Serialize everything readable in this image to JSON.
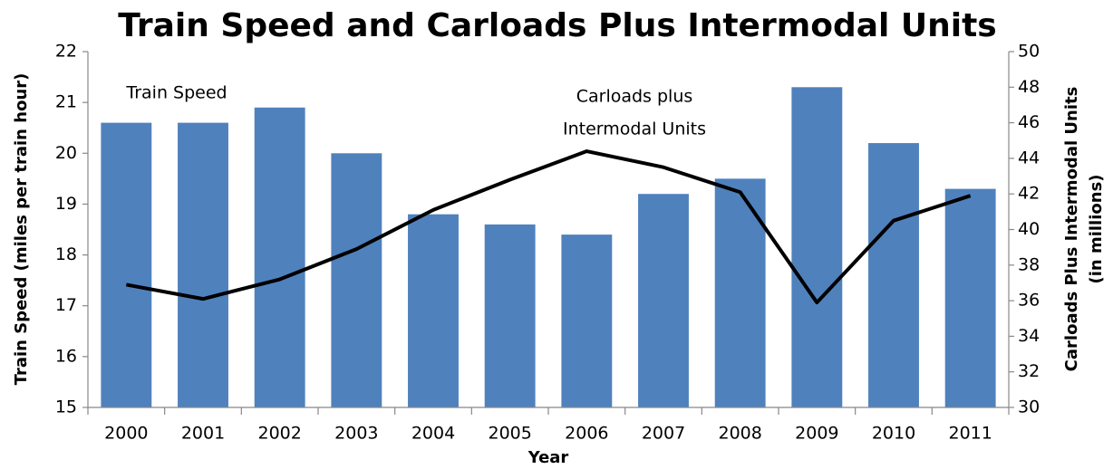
{
  "chart_data": {
    "type": "bar-line",
    "title": "Train Speed and Carloads Plus Intermodal Units",
    "x_label": "Year",
    "y_label": "Train Speed (miles per train hour)",
    "y2_label": [
      "Carloads Plus Intermodal Units",
      "(in millions)"
    ],
    "annotations": [
      "Train Speed",
      "Carloads plus",
      "Intermodal Units"
    ],
    "categories": [
      "2000",
      "2001",
      "2002",
      "2003",
      "2004",
      "2005",
      "2006",
      "2007",
      "2008",
      "2009",
      "2010",
      "2011"
    ],
    "series": [
      {
        "type": "bar",
        "color": "#4f81bd",
        "values": [
          20.6,
          20.6,
          20.9,
          20.0,
          18.8,
          18.6,
          18.4,
          19.2,
          19.5,
          21.3,
          20.2,
          19.3
        ]
      },
      {
        "type": "line",
        "color": "#000000",
        "axis": "y2",
        "values": [
          36.9,
          36.1,
          37.2,
          38.9,
          41.1,
          42.8,
          44.4,
          43.5,
          42.1,
          35.9,
          40.5,
          41.9
        ]
      }
    ],
    "ylim": [
      15,
      22
    ],
    "yticks": [
      15,
      16,
      17,
      18,
      19,
      20,
      21,
      22
    ],
    "y2lim": [
      30,
      50
    ],
    "y2ticks": [
      30,
      32,
      34,
      36,
      38,
      40,
      42,
      44,
      46,
      48,
      50
    ],
    "grid": false
  }
}
